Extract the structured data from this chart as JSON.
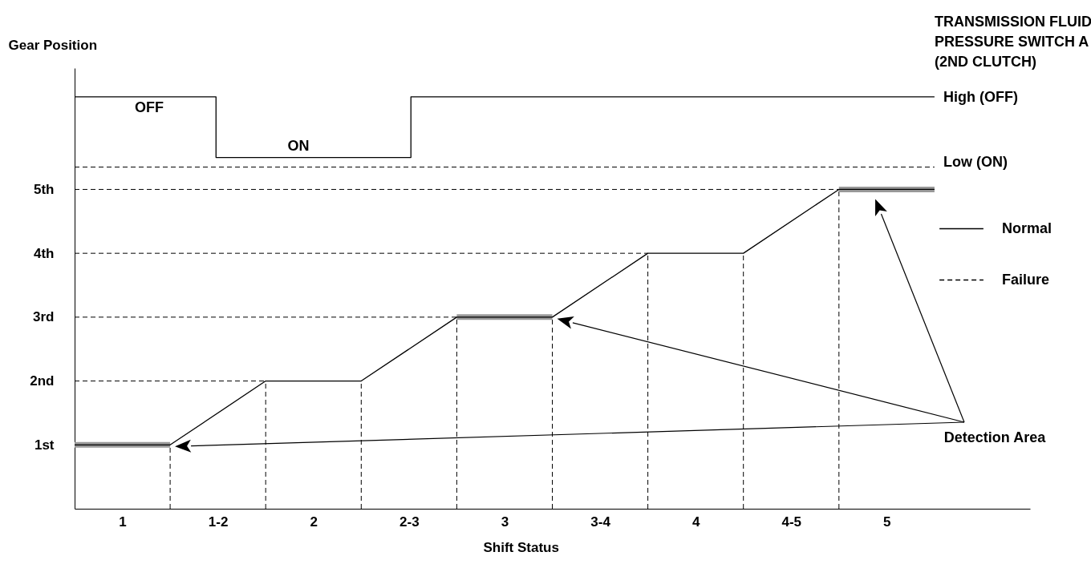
{
  "chart_data": {
    "type": "line",
    "xlabel": "Shift Status",
    "ylabel": "Gear Position",
    "xlim": [
      0.75,
      5.75
    ],
    "xticks": [
      1,
      {
        "value": 1.5,
        "label": "1-2"
      },
      2,
      {
        "value": 2.5,
        "label": "2-3"
      },
      3,
      {
        "value": 3.5,
        "label": "3-4"
      },
      4,
      {
        "value": 4.5,
        "label": "4-5"
      },
      5
    ],
    "ylim": [
      0,
      6.9
    ],
    "yticks": [
      {
        "value": 1,
        "label": "1st"
      },
      {
        "value": 2,
        "label": "2nd"
      },
      {
        "value": 3,
        "label": "3rd"
      },
      {
        "value": 4,
        "label": "4th"
      },
      {
        "value": 5,
        "label": "5th"
      }
    ],
    "series": [
      {
        "color": "#999999",
        "x": [
          0.75,
          1.25,
          1.75,
          2.25,
          2.75,
          3.25,
          3.75,
          4.25,
          4.75,
          5.25
        ],
        "values": [
          1,
          1,
          null,
          null,
          3,
          3,
          null,
          null,
          5,
          5
        ]
      },
      {
        "color": "#000000",
        "line_style": "solid",
        "x": [
          0.75,
          1.25,
          1.75,
          2.25,
          2.75,
          3.25,
          3.75,
          4.25,
          4.75,
          5.25
        ],
        "values": [
          1,
          1,
          2,
          2,
          3,
          3,
          4,
          4,
          5,
          5
        ]
      },
      {
        "name": "Normal",
        "color": "#000000",
        "line_style": "solid",
        "x": [
          0.75,
          1.49,
          1.49,
          2.51,
          2.51,
          5.25
        ],
        "values": [
          6.45,
          6.45,
          5.5,
          5.5,
          6.45,
          6.45
        ]
      },
      {
        "name": "Failure",
        "color": "#000000",
        "line_style": "dashed",
        "x": [
          0.75,
          5.25
        ],
        "values": [
          5.35,
          5.35
        ]
      },
      {
        "color": "#000000",
        "line_style": "dashed",
        "x": [
          1.25,
          1.25,
          null,
          1.75,
          1.75,
          null,
          2.25,
          2.25,
          null,
          2.75,
          2.75,
          null,
          3.25,
          3.25,
          null,
          3.75,
          3.75,
          null,
          4.25,
          4.25,
          null,
          4.75,
          4.75,
          null,
          0.75,
          1.75,
          null,
          0.75,
          2.75,
          null,
          0.75,
          3.75,
          null,
          0.75,
          4.75
        ],
        "values": [
          0,
          1,
          null,
          0,
          2,
          null,
          0,
          2,
          null,
          0,
          3,
          null,
          0,
          3,
          null,
          0,
          4,
          null,
          0,
          4,
          null,
          0,
          5,
          null,
          2,
          2,
          null,
          3,
          3,
          null,
          4,
          4,
          null,
          5,
          5
        ]
      }
    ],
    "annotations": [
      "TRANSMISSION FLUID PRESSURE SWITCH A (2ND CLUTCH)",
      "High (OFF)",
      "Low (ON)",
      "OFF",
      "ON",
      "Detection Area"
    ],
    "legend": "right"
  }
}
